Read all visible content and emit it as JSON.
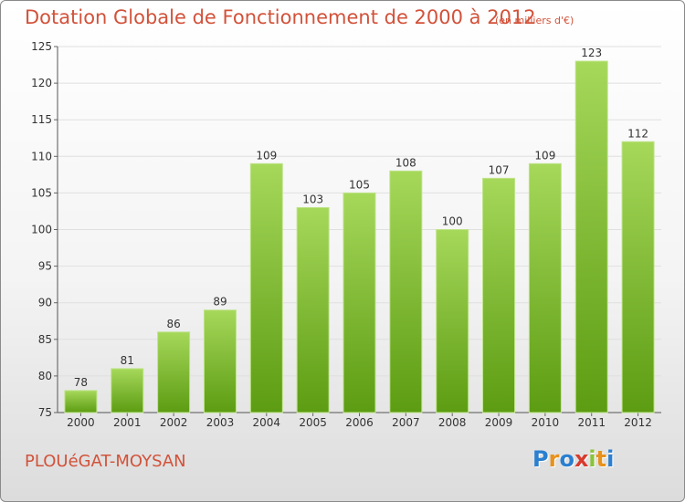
{
  "header": {
    "title": "Dotation Globale de Fonctionnement de 2000 à 2012",
    "unit": "(en milliers d'€)"
  },
  "footer": {
    "commune": "PLOUéGAT-MOYSAN",
    "logo_text": "Proxiti",
    "logo_colors": [
      "#2a7fd0",
      "#e8921c",
      "#2a7fd0",
      "#d83a2e",
      "#8bc33a",
      "#e8921c",
      "#2a7fd0"
    ]
  },
  "colors": {
    "bar_light": "#a6d85a",
    "bar_dark": "#5c9c12",
    "text": "#d2523a",
    "grid": "#e0e0e0"
  },
  "chart_data": {
    "type": "bar",
    "title": "Dotation Globale de Fonctionnement de 2000 à 2012",
    "subtitle": "(en milliers d'€)",
    "categories": [
      "2000",
      "2001",
      "2002",
      "2003",
      "2004",
      "2005",
      "2006",
      "2007",
      "2008",
      "2009",
      "2010",
      "2011",
      "2012"
    ],
    "values": [
      78,
      81,
      86,
      89,
      109,
      103,
      105,
      108,
      100,
      107,
      109,
      123,
      112
    ],
    "ylim": [
      75,
      125
    ],
    "yticks": [
      75,
      80,
      85,
      90,
      95,
      100,
      105,
      110,
      115,
      120,
      125
    ],
    "grid": true,
    "xlabel": "",
    "ylabel": ""
  }
}
